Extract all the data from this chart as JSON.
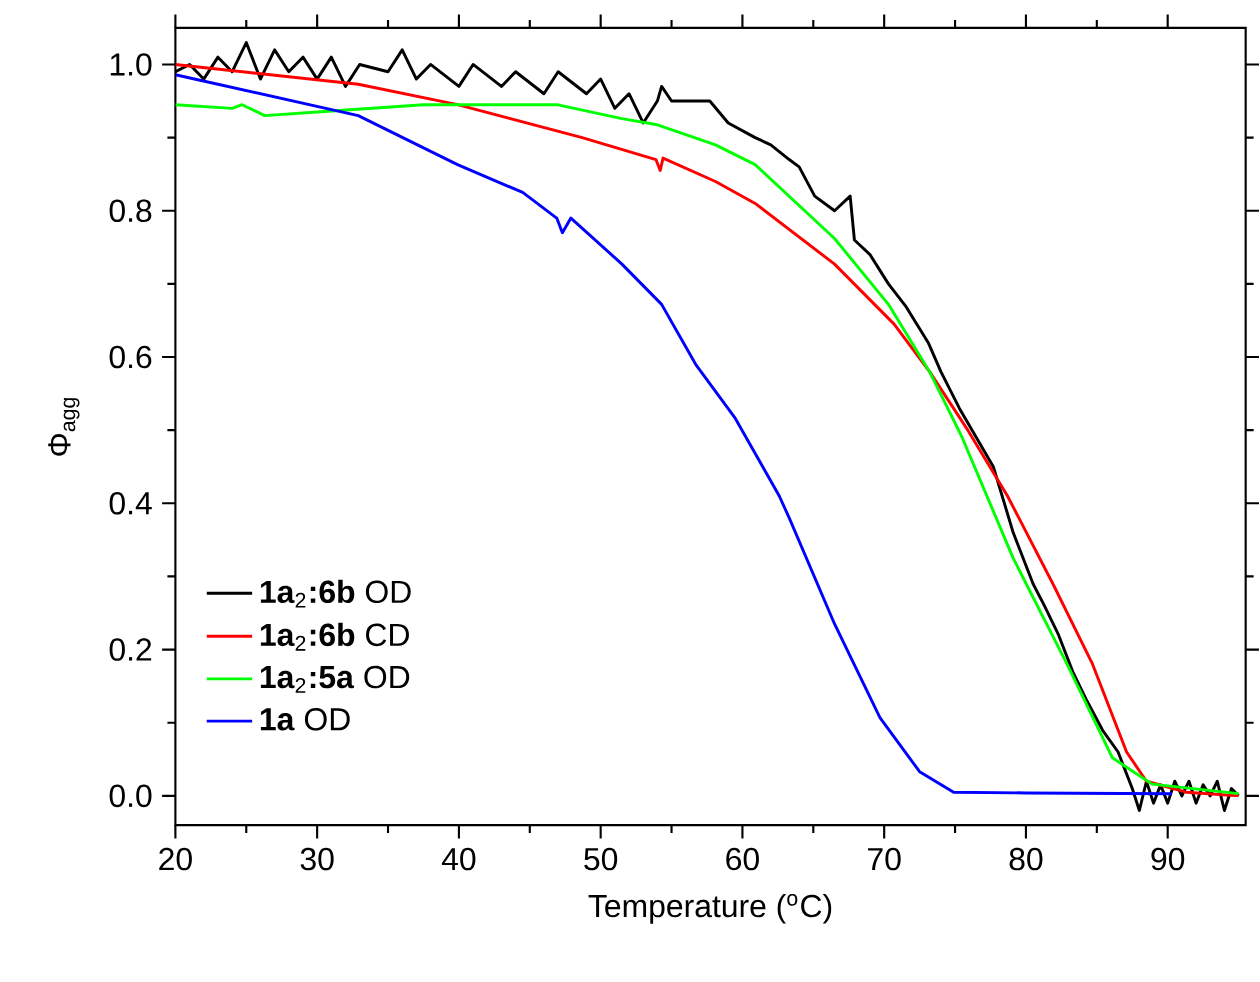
{
  "chart_data": {
    "type": "line",
    "xlabel": "Temperature ($^{o}$C)",
    "ylabel": "Φ$_{agg}$",
    "xlim": [
      20,
      95.5
    ],
    "ylim": [
      -0.04,
      1.05
    ],
    "xticks": [
      20,
      30,
      40,
      50,
      60,
      70,
      80,
      90
    ],
    "yticks": [
      {
        "value": 0,
        "label": "0.0"
      },
      {
        "value": 0.2,
        "label": "0.2"
      },
      {
        "value": 0.4,
        "label": "0.4"
      },
      {
        "value": 0.6,
        "label": "0.6"
      },
      {
        "value": 0.8,
        "label": "0.8"
      },
      {
        "value": 1,
        "label": "1.0"
      }
    ],
    "grid": false,
    "legend": "bottom left",
    "marker": "none",
    "line_style": "solid",
    "series": [
      {
        "name": "**1a**$_{2}$**:6b** OD",
        "color": "#000000",
        "x": [
          20,
          21,
          22,
          23,
          24,
          25,
          26,
          27,
          28,
          29,
          30,
          31,
          32,
          33,
          35,
          36,
          37,
          38,
          40,
          41,
          43,
          44,
          46,
          47,
          49,
          50,
          51,
          52,
          53,
          54,
          54.3,
          55,
          57.7,
          59,
          60.9,
          62,
          63.3,
          64,
          65.1,
          66.5,
          67.6,
          67.9,
          69,
          70.3,
          71.5,
          73.1,
          74,
          75.3,
          76.5,
          77.7,
          79.1,
          80.5,
          81.3,
          82.3,
          83.3,
          84.3,
          85.4,
          86.5,
          87.5,
          88,
          88.5,
          89,
          89.5,
          90,
          90.5,
          91,
          91.5,
          92,
          92.5,
          93,
          93.5,
          94,
          94.5,
          95
        ],
        "values": [
          0.99,
          1.0,
          0.98,
          1.01,
          0.99,
          1.03,
          0.98,
          1.02,
          0.99,
          1.01,
          0.98,
          1.01,
          0.97,
          1.0,
          0.99,
          1.02,
          0.98,
          1.0,
          0.97,
          1.0,
          0.97,
          0.99,
          0.96,
          0.99,
          0.96,
          0.98,
          0.94,
          0.96,
          0.92,
          0.95,
          0.97,
          0.95,
          0.95,
          0.92,
          0.9,
          0.89,
          0.87,
          0.86,
          0.82,
          0.8,
          0.82,
          0.76,
          0.74,
          0.7,
          0.67,
          0.62,
          0.58,
          0.53,
          0.49,
          0.45,
          0.36,
          0.29,
          0.26,
          0.22,
          0.17,
          0.13,
          0.09,
          0.06,
          0.01,
          -0.02,
          0.02,
          -0.01,
          0.015,
          -0.01,
          0.02,
          0.0,
          0.02,
          -0.01,
          0.015,
          0.0,
          0.02,
          -0.02,
          0.01,
          0.0
        ]
      },
      {
        "name": "**1a**$_{2}$**:6b** CD",
        "color": "#ff0000",
        "x": [
          20,
          32.9,
          39.9,
          48.7,
          53.9,
          54.2,
          54.4,
          58.1,
          60.9,
          66.5,
          70.7,
          73.2,
          75.9,
          78.7,
          81.9,
          84.7,
          87.1,
          88.5,
          91.3,
          95
        ],
        "values": [
          1.0,
          0.973,
          0.945,
          0.9,
          0.87,
          0.855,
          0.872,
          0.84,
          0.81,
          0.727,
          0.645,
          0.58,
          0.5,
          0.41,
          0.29,
          0.18,
          0.06,
          0.02,
          0.005,
          0.0
        ]
      },
      {
        "name": "**1a**$_{2}$**:5a** OD",
        "color": "#00ff00",
        "x": [
          20,
          24,
          24.7,
          26.3,
          30,
          37.5,
          46.9,
          51.5,
          53.9,
          58.1,
          60.9,
          66.5,
          70.3,
          73.2,
          75.5,
          79.1,
          82.9,
          86.1,
          88.9,
          95
        ],
        "values": [
          0.945,
          0.94,
          0.945,
          0.93,
          0.935,
          0.945,
          0.945,
          0.926,
          0.918,
          0.89,
          0.863,
          0.762,
          0.672,
          0.58,
          0.49,
          0.325,
          0.18,
          0.052,
          0.016,
          0.003
        ]
      },
      {
        "name": "**1a** OD",
        "color": "#0000ff",
        "x": [
          20,
          32.9,
          39.9,
          44.5,
          46.9,
          47.3,
          47.9,
          51.5,
          54.3,
          56.7,
          59.5,
          62.6,
          63.3,
          66.5,
          69.7,
          72.5,
          74.9,
          80,
          90.3
        ],
        "values": [
          0.986,
          0.93,
          0.863,
          0.825,
          0.79,
          0.77,
          0.79,
          0.727,
          0.672,
          0.59,
          0.516,
          0.41,
          0.38,
          0.235,
          0.107,
          0.033,
          0.005,
          0.004,
          0.003
        ]
      }
    ]
  }
}
